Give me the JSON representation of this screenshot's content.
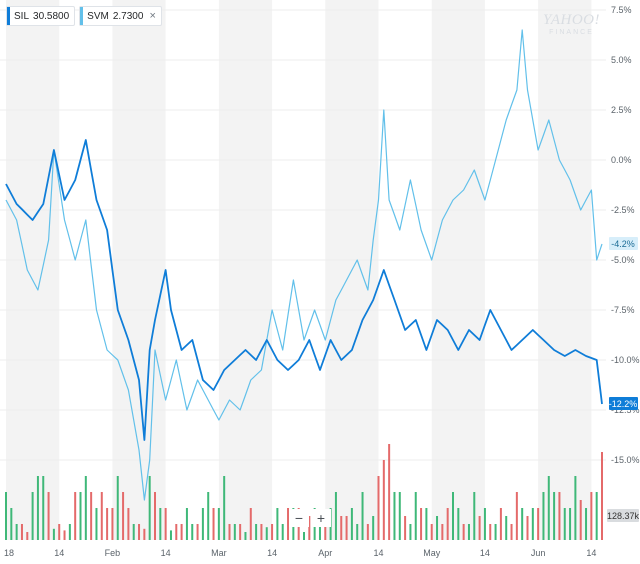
{
  "legend": [
    {
      "ticker": "SIL",
      "value": "30.5800",
      "color": "#0f7dd8",
      "close_icon": ""
    },
    {
      "ticker": "SVM",
      "value": "2.7300",
      "color": "#62c0ea",
      "close_icon": "×"
    }
  ],
  "watermark": {
    "main": "YAHOO!",
    "sub": "FINANCE"
  },
  "zoom": {
    "minus": "−",
    "plus": "+"
  },
  "colors": {
    "sil": "#0f7dd8",
    "svm": "#62c0ea",
    "vol_up": "#3fb878",
    "vol_down": "#e46a6a",
    "band": "#f3f3f3"
  },
  "chart_data": {
    "type": "line",
    "y_axis": {
      "ticks": [
        "7.5%",
        "5.0%",
        "2.5%",
        "0.0%",
        "-2.5%",
        "-5.0%",
        "-7.5%",
        "-10.0%",
        "-12.5%",
        "-15.0%"
      ],
      "tick_values": [
        7.5,
        5.0,
        2.5,
        0.0,
        -2.5,
        -5.0,
        -7.5,
        -10.0,
        -12.5,
        -15.0
      ]
    },
    "x_axis": {
      "labels": [
        "18",
        "14",
        "Feb",
        "14",
        "Mar",
        "14",
        "Apr",
        "14",
        "May",
        "14",
        "Jun",
        "14"
      ],
      "label_index": [
        0,
        10,
        20,
        30,
        40,
        50,
        60,
        70,
        80,
        90,
        100,
        110
      ]
    },
    "n_points": 113,
    "series": [
      {
        "name": "SIL",
        "last_label": "-12.2%",
        "keypoints": [
          [
            0,
            -1.2
          ],
          [
            2,
            -2.2
          ],
          [
            5,
            -3.0
          ],
          [
            7,
            -2.2
          ],
          [
            9,
            0.5
          ],
          [
            11,
            -2.0
          ],
          [
            13,
            -1.0
          ],
          [
            15,
            1.0
          ],
          [
            17,
            -2.0
          ],
          [
            19,
            -3.5
          ],
          [
            21,
            -7.5
          ],
          [
            23,
            -9.0
          ],
          [
            25,
            -11.0
          ],
          [
            26,
            -14.0
          ],
          [
            27,
            -9.5
          ],
          [
            28,
            -8.0
          ],
          [
            30,
            -5.5
          ],
          [
            31,
            -7.5
          ],
          [
            33,
            -9.5
          ],
          [
            35,
            -9.0
          ],
          [
            37,
            -11.0
          ],
          [
            39,
            -11.5
          ],
          [
            41,
            -10.5
          ],
          [
            43,
            -10.0
          ],
          [
            45,
            -9.5
          ],
          [
            47,
            -10.0
          ],
          [
            49,
            -9.0
          ],
          [
            51,
            -10.0
          ],
          [
            53,
            -10.5
          ],
          [
            55,
            -10.0
          ],
          [
            57,
            -9.0
          ],
          [
            59,
            -10.5
          ],
          [
            61,
            -9.0
          ],
          [
            63,
            -10.0
          ],
          [
            65,
            -9.5
          ],
          [
            67,
            -8.0
          ],
          [
            69,
            -7.0
          ],
          [
            71,
            -5.5
          ],
          [
            73,
            -7.0
          ],
          [
            75,
            -8.5
          ],
          [
            77,
            -8.0
          ],
          [
            79,
            -9.5
          ],
          [
            81,
            -8.0
          ],
          [
            83,
            -8.5
          ],
          [
            85,
            -9.5
          ],
          [
            87,
            -8.5
          ],
          [
            89,
            -9.0
          ],
          [
            91,
            -7.5
          ],
          [
            93,
            -8.5
          ],
          [
            95,
            -9.5
          ],
          [
            97,
            -9.0
          ],
          [
            99,
            -8.5
          ],
          [
            101,
            -9.0
          ],
          [
            103,
            -9.5
          ],
          [
            105,
            -9.8
          ],
          [
            107,
            -9.5
          ],
          [
            109,
            -9.8
          ],
          [
            111,
            -10.0
          ],
          [
            112,
            -12.2
          ]
        ]
      },
      {
        "name": "SVM",
        "last_label": "-4.2%",
        "keypoints": [
          [
            0,
            -2.0
          ],
          [
            2,
            -3.0
          ],
          [
            4,
            -5.5
          ],
          [
            6,
            -6.5
          ],
          [
            8,
            -4.0
          ],
          [
            9,
            0.5
          ],
          [
            11,
            -3.0
          ],
          [
            13,
            -5.0
          ],
          [
            15,
            -3.0
          ],
          [
            17,
            -7.5
          ],
          [
            19,
            -9.5
          ],
          [
            21,
            -10.0
          ],
          [
            23,
            -11.5
          ],
          [
            24,
            -13.0
          ],
          [
            25,
            -14.5
          ],
          [
            26,
            -17.0
          ],
          [
            27,
            -15.0
          ],
          [
            28,
            -9.5
          ],
          [
            30,
            -12.0
          ],
          [
            32,
            -10.0
          ],
          [
            34,
            -12.5
          ],
          [
            36,
            -11.0
          ],
          [
            38,
            -12.0
          ],
          [
            40,
            -13.0
          ],
          [
            42,
            -12.0
          ],
          [
            44,
            -12.5
          ],
          [
            46,
            -11.0
          ],
          [
            48,
            -10.5
          ],
          [
            50,
            -7.5
          ],
          [
            52,
            -9.5
          ],
          [
            54,
            -6.0
          ],
          [
            56,
            -9.0
          ],
          [
            58,
            -7.5
          ],
          [
            60,
            -9.0
          ],
          [
            62,
            -7.0
          ],
          [
            64,
            -6.0
          ],
          [
            66,
            -5.0
          ],
          [
            68,
            -6.5
          ],
          [
            69,
            -4.0
          ],
          [
            70,
            -2.0
          ],
          [
            71,
            2.5
          ],
          [
            72,
            -2.0
          ],
          [
            74,
            -3.5
          ],
          [
            76,
            -1.0
          ],
          [
            78,
            -3.5
          ],
          [
            80,
            -5.0
          ],
          [
            82,
            -3.0
          ],
          [
            84,
            -2.0
          ],
          [
            86,
            -1.5
          ],
          [
            88,
            -0.5
          ],
          [
            90,
            -2.0
          ],
          [
            92,
            0.0
          ],
          [
            94,
            2.0
          ],
          [
            96,
            3.5
          ],
          [
            97,
            6.5
          ],
          [
            98,
            3.5
          ],
          [
            100,
            0.5
          ],
          [
            102,
            2.0
          ],
          [
            104,
            0.0
          ],
          [
            106,
            -1.0
          ],
          [
            108,
            -2.5
          ],
          [
            110,
            -1.5
          ],
          [
            111,
            -5.0
          ],
          [
            112,
            -4.2
          ]
        ]
      }
    ],
    "volume_label": "128.37k",
    "volume": [
      3,
      2,
      1,
      1,
      0.5,
      3,
      4,
      4,
      3,
      0.7,
      1,
      0.6,
      1,
      3,
      3,
      4,
      3,
      2,
      3,
      2,
      2,
      4,
      3,
      2,
      1,
      1,
      0.7,
      4,
      3,
      2,
      2,
      0.6,
      1,
      1,
      2,
      1,
      1,
      2,
      3,
      2,
      2,
      4,
      1,
      1,
      1,
      0.5,
      2,
      1,
      1,
      0.8,
      1,
      2,
      1,
      2,
      2,
      2,
      0.5,
      1.5,
      2,
      1,
      1,
      2,
      3,
      1.5,
      1.5,
      2,
      1,
      3,
      1,
      1.5,
      4,
      5,
      6,
      3,
      3,
      1.5,
      1,
      3,
      2,
      2,
      1,
      1.5,
      1,
      2,
      3,
      2,
      1,
      1,
      3,
      1.5,
      2,
      1,
      1,
      2,
      1.5,
      1,
      3,
      2,
      1.5,
      2,
      2,
      3,
      4,
      3,
      3,
      2,
      2,
      4,
      2.5,
      2,
      3,
      3,
      5.5
    ],
    "volume_up": [
      1,
      1,
      1,
      0,
      0,
      1,
      1,
      1,
      0,
      1,
      0,
      0,
      1,
      0,
      1,
      1,
      0,
      1,
      0,
      0,
      0,
      1,
      0,
      0,
      1,
      0,
      0,
      1,
      0,
      1,
      0,
      1,
      0,
      0,
      1,
      1,
      0,
      1,
      1,
      0,
      1,
      1,
      0,
      1,
      0,
      1,
      0,
      1,
      0,
      1,
      0,
      1,
      1,
      0,
      1,
      0,
      1,
      0,
      1,
      1,
      0,
      1,
      1,
      0,
      0,
      1,
      1,
      1,
      0,
      1,
      0,
      0,
      0,
      1,
      1,
      0,
      1,
      1,
      0,
      1,
      0,
      1,
      0,
      0,
      1,
      1,
      0,
      1,
      1,
      0,
      1,
      0,
      1,
      0,
      1,
      0,
      0,
      1,
      0,
      1,
      0,
      1,
      1,
      1,
      0,
      1,
      1,
      1,
      0,
      1,
      0,
      1,
      0
    ]
  }
}
